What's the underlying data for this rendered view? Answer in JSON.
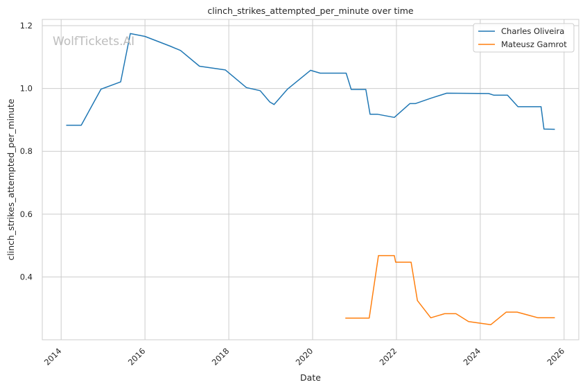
{
  "chart_data": {
    "type": "line",
    "title": "clinch_strikes_attempted_per_minute over time",
    "xlabel": "Date",
    "ylabel": "clinch_strikes_attempted_per_minute",
    "watermark": "WolfTickets.AI",
    "xlim": [
      2013.55,
      2026.35
    ],
    "ylim": [
      0.2,
      1.22
    ],
    "x_ticks": [
      2014,
      2016,
      2018,
      2020,
      2022,
      2024,
      2026
    ],
    "y_ticks": [
      0.4,
      0.6,
      0.8,
      1.0,
      1.2
    ],
    "y_tick_labels": [
      "0.4",
      "0.6",
      "0.8",
      "1.0",
      "1.2"
    ],
    "grid": true,
    "legend_position": "top-right",
    "series": [
      {
        "name": "Charles Oliveira",
        "color": "#1f77b4",
        "points": [
          [
            2014.12,
            0.883
          ],
          [
            2014.48,
            0.883
          ],
          [
            2014.95,
            0.998
          ],
          [
            2015.42,
            1.021
          ],
          [
            2015.65,
            1.175
          ],
          [
            2016.0,
            1.166
          ],
          [
            2016.6,
            1.135
          ],
          [
            2016.85,
            1.121
          ],
          [
            2017.3,
            1.071
          ],
          [
            2017.92,
            1.059
          ],
          [
            2018.42,
            1.003
          ],
          [
            2018.75,
            0.993
          ],
          [
            2018.98,
            0.957
          ],
          [
            2019.08,
            0.949
          ],
          [
            2019.4,
            0.998
          ],
          [
            2019.95,
            1.058
          ],
          [
            2020.18,
            1.049
          ],
          [
            2020.8,
            1.049
          ],
          [
            2020.92,
            0.997
          ],
          [
            2021.27,
            0.997
          ],
          [
            2021.37,
            0.918
          ],
          [
            2021.55,
            0.918
          ],
          [
            2021.95,
            0.908
          ],
          [
            2022.32,
            0.952
          ],
          [
            2022.45,
            0.952
          ],
          [
            2022.82,
            0.969
          ],
          [
            2023.2,
            0.985
          ],
          [
            2024.2,
            0.984
          ],
          [
            2024.32,
            0.979
          ],
          [
            2024.65,
            0.979
          ],
          [
            2024.9,
            0.942
          ],
          [
            2025.45,
            0.942
          ],
          [
            2025.52,
            0.871
          ],
          [
            2025.78,
            0.87
          ]
        ]
      },
      {
        "name": "Mateusz Gamrot",
        "color": "#ff7f0e",
        "points": [
          [
            2020.78,
            0.269
          ],
          [
            2021.35,
            0.269
          ],
          [
            2021.57,
            0.468
          ],
          [
            2021.95,
            0.468
          ],
          [
            2021.98,
            0.447
          ],
          [
            2022.35,
            0.447
          ],
          [
            2022.5,
            0.325
          ],
          [
            2022.82,
            0.27
          ],
          [
            2023.15,
            0.283
          ],
          [
            2023.42,
            0.283
          ],
          [
            2023.72,
            0.258
          ],
          [
            2024.25,
            0.248
          ],
          [
            2024.62,
            0.288
          ],
          [
            2024.88,
            0.288
          ],
          [
            2025.38,
            0.27
          ],
          [
            2025.78,
            0.27
          ]
        ]
      }
    ]
  }
}
